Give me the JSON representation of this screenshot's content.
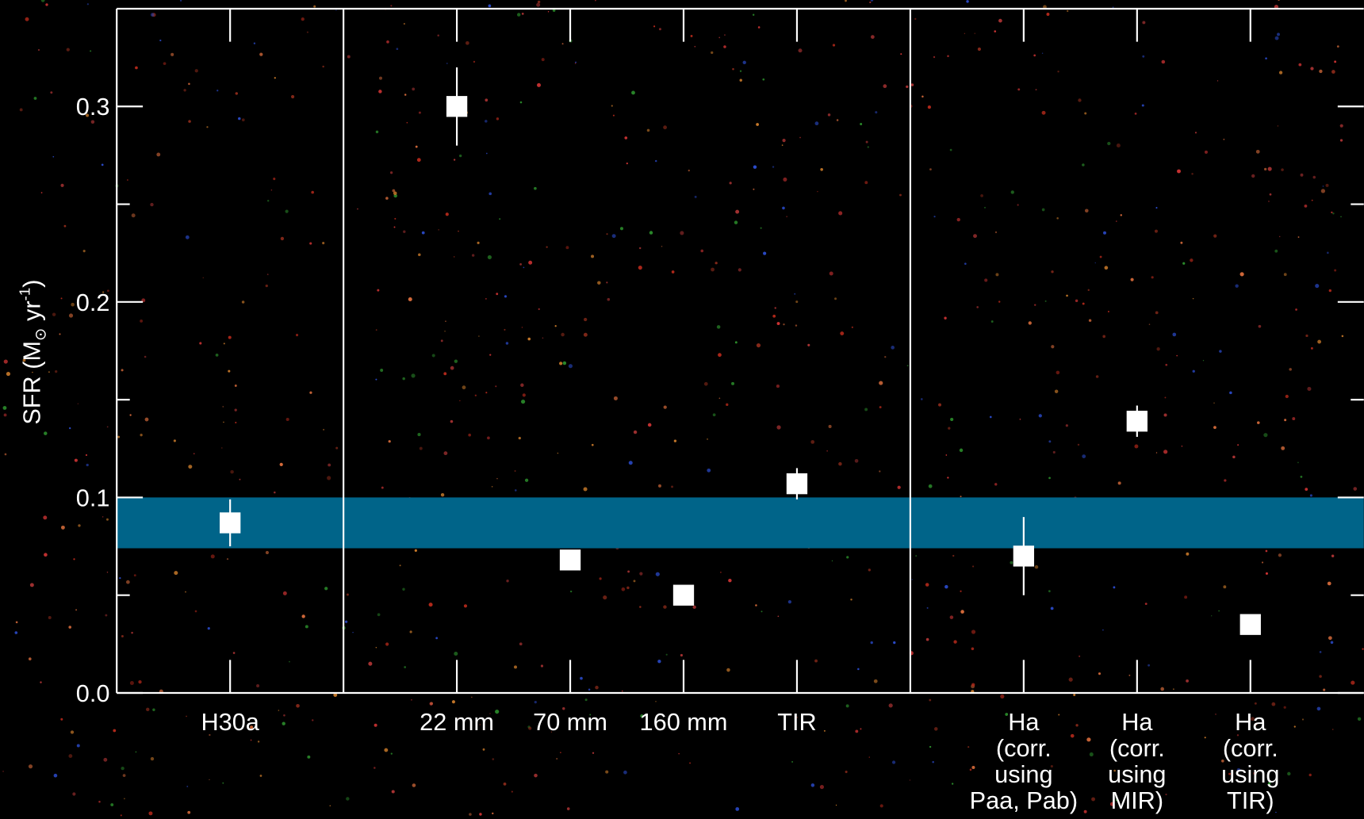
{
  "chart_data": {
    "type": "errorbar",
    "ylabel": {
      "text": "SFR (M",
      "symbol": "⊙",
      "unit": " yr",
      "exponent": "-1",
      "close": ")"
    },
    "categories": [
      [
        "H30a"
      ],
      [
        "22 mm"
      ],
      [
        "70 mm"
      ],
      [
        "160 mm"
      ],
      [
        "TIR"
      ],
      [
        "Ha",
        "(corr.",
        "using",
        "Paa, Pab)"
      ],
      [
        "Ha",
        "(corr.",
        "using",
        "MIR)"
      ],
      [
        "Ha",
        "(corr.",
        "using",
        "TIR)"
      ]
    ],
    "values": [
      0.087,
      0.3,
      0.068,
      0.05,
      0.107,
      0.07,
      0.139,
      0.035
    ],
    "errors": [
      0.012,
      0.02,
      null,
      null,
      0.008,
      0.02,
      0.008,
      null
    ],
    "color": "#ffffff",
    "band": [
      0.074,
      0.1
    ],
    "band_color": "#006489",
    "ylim": [
      0,
      0.35
    ],
    "yticks": [
      {
        "value": 0,
        "label": "0.0"
      },
      {
        "value": 0.1,
        "label": "0.1"
      },
      {
        "value": 0.2,
        "label": "0.2"
      },
      {
        "value": 0.3,
        "label": "0.3"
      }
    ],
    "yticks_minor": [
      0.05,
      0.15,
      0.25
    ]
  }
}
